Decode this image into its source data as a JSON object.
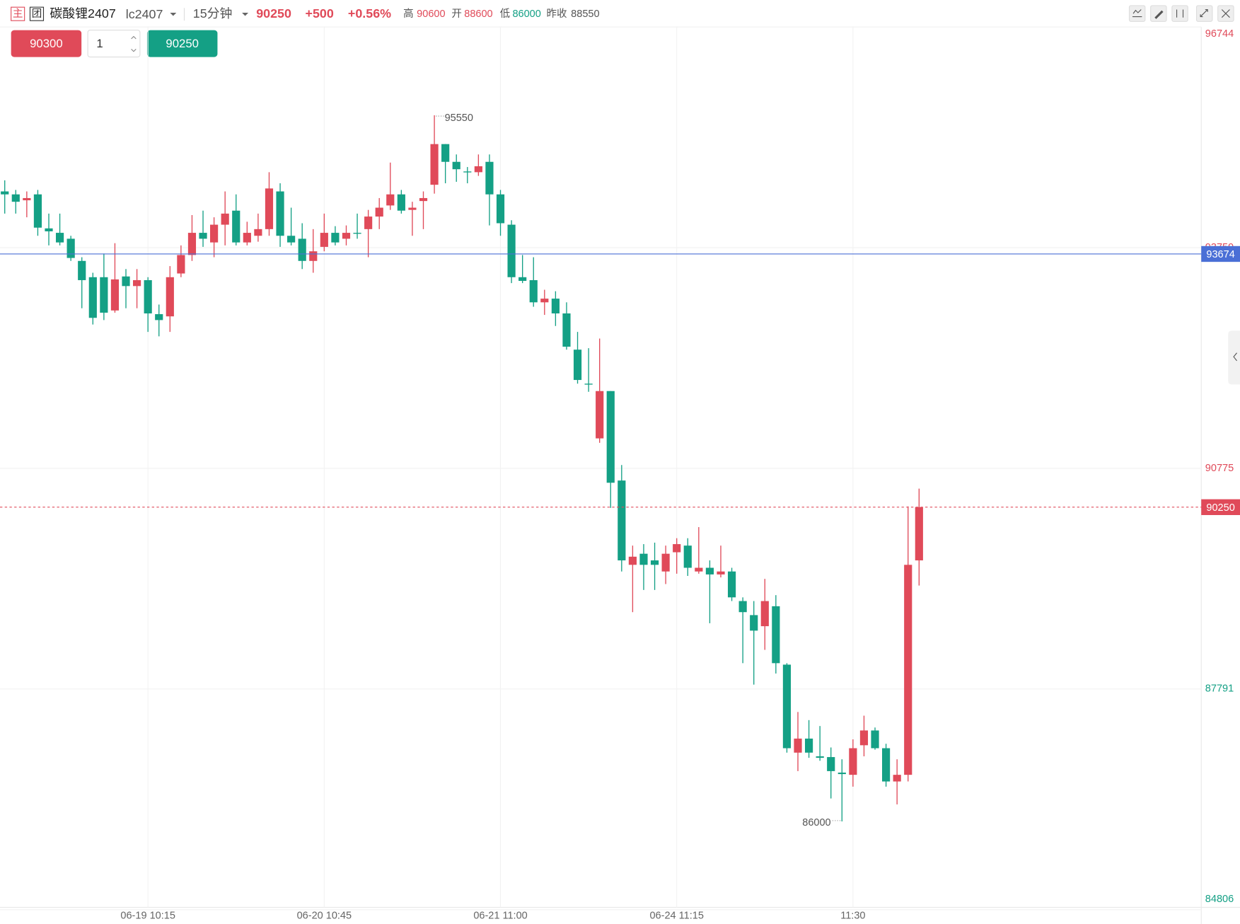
{
  "header": {
    "symbol": "碳酸锂2407",
    "code": "lc2407",
    "period": "15分钟",
    "last": 90250,
    "change": "+500",
    "change_pct": "+0.56%",
    "high_label": "高",
    "high": 90600,
    "open_label": "开",
    "open": 88600,
    "low_label": "低",
    "low": 86000,
    "prev_close_label": "昨收",
    "prev_close": 88550,
    "badge_main": "主",
    "badge_group": "团"
  },
  "order": {
    "ask": 90300,
    "quantity": 1,
    "bid": 90250
  },
  "chart_data": {
    "type": "candlestick",
    "categories": [
      null,
      null,
      null,
      null,
      null,
      null,
      null,
      null,
      null,
      null,
      null,
      null,
      null,
      "06-19 10:15",
      null,
      null,
      null,
      null,
      null,
      null,
      null,
      null,
      null,
      null,
      null,
      null,
      null,
      null,
      null,
      "06-20 10:45",
      null,
      null,
      null,
      null,
      null,
      null,
      null,
      null,
      null,
      null,
      null,
      null,
      null,
      null,
      null,
      "06-21 11:00",
      null,
      null,
      null,
      null,
      null,
      null,
      null,
      null,
      null,
      null,
      null,
      null,
      null,
      null,
      null,
      "06-24 11:15",
      null,
      null,
      null,
      null,
      null,
      null,
      null,
      null,
      null,
      null,
      null,
      null,
      null,
      null,
      null,
      "11:30",
      null,
      null,
      null,
      null,
      null,
      null
    ],
    "open": [
      94520,
      94480,
      94400,
      94480,
      94020,
      93960,
      93880,
      93580,
      93360,
      93360,
      92910,
      93370,
      93240,
      93320,
      92860,
      92830,
      93410,
      93660,
      93960,
      93830,
      94070,
      94260,
      93830,
      93920,
      94010,
      94520,
      93920,
      93880,
      93580,
      93770,
      93960,
      93880,
      93960,
      94010,
      94180,
      94330,
      94480,
      94270,
      94390,
      94610,
      95160,
      94920,
      94790,
      94780,
      94920,
      94480,
      94070,
      93360,
      93320,
      93020,
      93070,
      92870,
      92380,
      91920,
      91180,
      91820,
      90610,
      89470,
      89620,
      89530,
      89380,
      89640,
      89730,
      89380,
      89430,
      89340,
      89380,
      88980,
      88790,
      88640,
      88910,
      88120,
      86930,
      87120,
      86880,
      86870,
      86660,
      86630,
      87030,
      87230,
      86990,
      86540,
      86630,
      89530
    ],
    "high": [
      94670,
      94540,
      94520,
      94540,
      94220,
      94220,
      93920,
      93630,
      93420,
      93680,
      93820,
      93470,
      93470,
      93360,
      92990,
      93510,
      93790,
      94200,
      94260,
      94170,
      94520,
      94480,
      94110,
      94220,
      94780,
      94630,
      94300,
      94090,
      94010,
      94220,
      94050,
      94060,
      94220,
      94270,
      94430,
      94910,
      94540,
      94380,
      94520,
      95550,
      95160,
      95020,
      94850,
      95020,
      95020,
      94540,
      94130,
      93660,
      93630,
      93190,
      93170,
      93020,
      92620,
      92400,
      92530,
      91820,
      90820,
      89730,
      89750,
      89770,
      89730,
      89830,
      89830,
      89980,
      89530,
      89730,
      89430,
      89030,
      88980,
      89280,
      89060,
      88140,
      87480,
      87370,
      87290,
      87000,
      86840,
      87110,
      87430,
      87270,
      87050,
      86840,
      90260,
      90500
    ],
    "low": [
      94220,
      94220,
      94170,
      93920,
      93790,
      93790,
      93580,
      92940,
      92720,
      92780,
      92880,
      92940,
      92940,
      92620,
      92560,
      92620,
      93360,
      93580,
      93770,
      93630,
      93790,
      93790,
      93790,
      93840,
      93920,
      93770,
      93790,
      93470,
      93420,
      93710,
      93790,
      93790,
      93880,
      93630,
      94010,
      94270,
      94220,
      93920,
      94010,
      94490,
      94630,
      94650,
      94630,
      94730,
      94060,
      93920,
      93280,
      93280,
      92960,
      92850,
      92700,
      92380,
      91920,
      91810,
      91120,
      90240,
      89380,
      88830,
      89130,
      89130,
      89210,
      89350,
      89320,
      89350,
      88680,
      89300,
      88980,
      88140,
      87850,
      88320,
      88000,
      86930,
      86680,
      86860,
      86820,
      86310,
      86000,
      86470,
      86880,
      86970,
      86470,
      86230,
      86540,
      89190
    ],
    "close": [
      94480,
      94380,
      94430,
      94030,
      93980,
      93830,
      93620,
      93320,
      92810,
      92880,
      93330,
      93240,
      93320,
      92870,
      92780,
      93360,
      93660,
      93960,
      93880,
      94070,
      94220,
      93830,
      93960,
      94010,
      94560,
      93920,
      93830,
      93580,
      93710,
      93960,
      93830,
      93960,
      93950,
      94180,
      94300,
      94480,
      94260,
      94300,
      94430,
      95160,
      94920,
      94820,
      94780,
      94860,
      94480,
      94090,
      93360,
      93310,
      93020,
      93070,
      92870,
      92420,
      91970,
      91910,
      91820,
      90580,
      89530,
      89580,
      89470,
      89470,
      89620,
      89750,
      89430,
      89430,
      89340,
      89380,
      89030,
      88830,
      88580,
      88980,
      88140,
      86990,
      87120,
      86930,
      86860,
      86680,
      86640,
      86990,
      87230,
      86990,
      86540,
      86630,
      89470,
      90250
    ],
    "up_color": "#e04a59",
    "down_color": "#14a085",
    "ylim": [
      84806,
      96744
    ],
    "yticks": [
      84806,
      87791,
      90775,
      93759,
      96744
    ],
    "grid": true,
    "price_lines": [
      {
        "value": 93674,
        "color": "#4a6fd6",
        "style": "solid"
      },
      {
        "value": 90250,
        "color": "#e04a59",
        "style": "dashed"
      }
    ]
  }
}
